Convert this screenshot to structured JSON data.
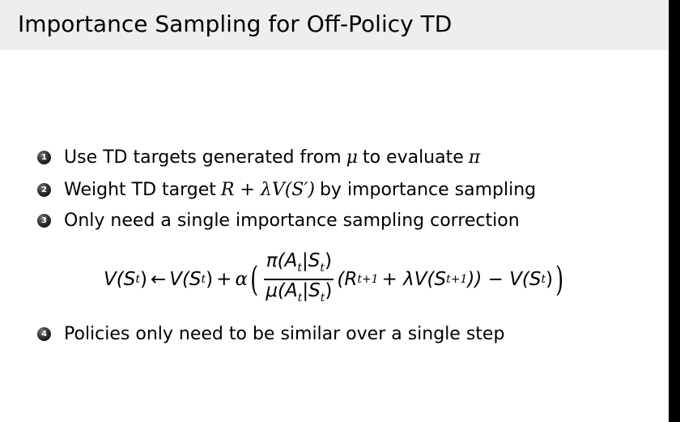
{
  "slide": {
    "title": "Importance Sampling for Off-Policy TD"
  },
  "items": [
    {
      "number": "1",
      "text_before": "Use TD targets generated from",
      "math_1": "μ",
      "text_middle": "to evaluate",
      "math_2": "π"
    },
    {
      "number": "2",
      "text_before": "Weight TD target",
      "math_expr": "R + λV(S′)",
      "text_after": "by importance sampling"
    },
    {
      "number": "3",
      "text": "Only need a single importance sampling correction"
    },
    {
      "number": "4",
      "text": "Policies only need to be similar over a single step"
    }
  ],
  "equation": {
    "lhs": "V(S",
    "arrow": "←",
    "rhs_v": "V(S",
    "plus": "+",
    "alpha": "α",
    "numerator": "π(A",
    "numerator_mid": "|S",
    "denominator": "μ(A",
    "denominator_mid": "|S",
    "reward": "(R",
    "reward_sub": "t+1",
    "plus_lambda": "+ λV(S",
    "next_sub": "t+1",
    "close_minus": ")) − V(S",
    "sub_t": "t",
    "close": ")"
  }
}
